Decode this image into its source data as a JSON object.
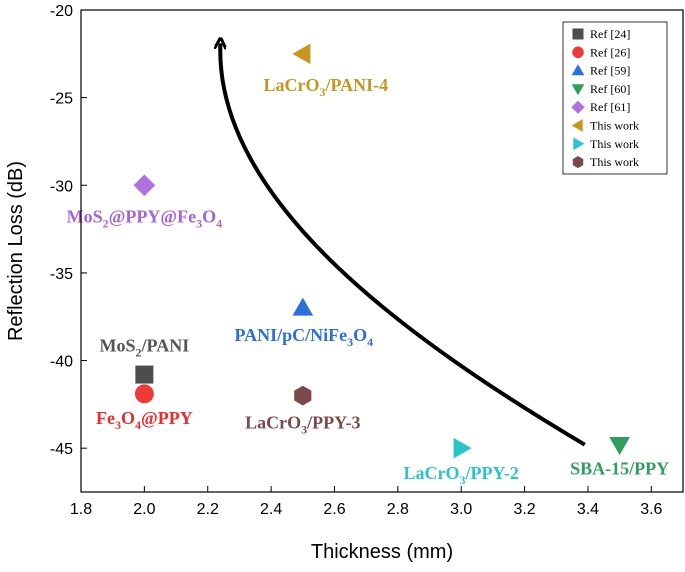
{
  "chart_data": {
    "type": "scatter",
    "xlabel": "Thickness (mm)",
    "ylabel": "Reflection Loss (dB)",
    "xlim": [
      1.8,
      3.7
    ],
    "ylim": [
      -47.5,
      -20
    ],
    "xticks": [
      1.8,
      2.0,
      2.2,
      2.4,
      2.6,
      2.8,
      3.0,
      3.2,
      3.4,
      3.6
    ],
    "xtick_labels": [
      "1.8",
      "2.0",
      "2.2",
      "2.4",
      "2.6",
      "2.8",
      "3.0",
      "3.2",
      "3.4",
      "3.6"
    ],
    "yticks": [
      -45,
      -40,
      -35,
      -30,
      -25,
      -20
    ],
    "ytick_labels": [
      "-45",
      "-40",
      "-35",
      "-30",
      "-25",
      "-20"
    ],
    "legend_position": "top-right",
    "series": [
      {
        "name": "Ref [24]",
        "marker": "square",
        "color": "#4d4d4d",
        "x": 2.0,
        "y": -40.8,
        "label": {
          "parts": [
            {
              "t": "MoS"
            },
            {
              "t": "2",
              "sub": true
            },
            {
              "t": "/PANI"
            }
          ],
          "color": "#555555"
        }
      },
      {
        "name": "Ref [26]",
        "marker": "circle",
        "color": "#f03a3a",
        "x": 2.0,
        "y": -41.9,
        "label": {
          "parts": [
            {
              "t": "Fe"
            },
            {
              "t": "3",
              "sub": true
            },
            {
              "t": "O"
            },
            {
              "t": "4",
              "sub": true
            },
            {
              "t": "@PPY"
            }
          ],
          "color": "#ef2b2b"
        }
      },
      {
        "name": "Ref [59]",
        "marker": "triangle-up",
        "color": "#2a6fdb",
        "x": 2.5,
        "y": -37.0,
        "label": {
          "parts": [
            {
              "t": "PANI/pC/NiFe"
            },
            {
              "t": "3",
              "sub": true
            },
            {
              "t": "O"
            },
            {
              "t": "4",
              "sub": true
            }
          ],
          "color": "#2a6fdb"
        }
      },
      {
        "name": "Ref [60]",
        "marker": "triangle-down",
        "color": "#2e9e5e",
        "x": 3.5,
        "y": -44.8,
        "label": {
          "parts": [
            {
              "t": "SBA-15/PPY"
            }
          ],
          "color": "#2e9e5e"
        }
      },
      {
        "name": "Ref [61]",
        "marker": "diamond",
        "color": "#b070e0",
        "x": 2.0,
        "y": -30.0,
        "label": {
          "parts": [
            {
              "t": "MoS"
            },
            {
              "t": "2",
              "sub": true
            },
            {
              "t": "@PPY@Fe"
            },
            {
              "t": "3",
              "sub": true
            },
            {
              "t": "O"
            },
            {
              "t": "4",
              "sub": true
            }
          ],
          "color": "#a862d8"
        }
      },
      {
        "name": "This work",
        "marker": "triangle-left",
        "color": "#c8961e",
        "x": 2.5,
        "y": -22.5,
        "label": {
          "parts": [
            {
              "t": "LaCrO"
            },
            {
              "t": "3",
              "sub": true
            },
            {
              "t": "/PANI-4"
            }
          ],
          "color": "#c8961e"
        }
      },
      {
        "name": "This work",
        "marker": "triangle-right",
        "color": "#2ac4cc",
        "x": 3.0,
        "y": -45.0,
        "label": {
          "parts": [
            {
              "t": "LaCrO"
            },
            {
              "t": "3",
              "sub": true
            },
            {
              "t": "/PPY-2"
            }
          ],
          "color": "#2ac4cc"
        }
      },
      {
        "name": "This work",
        "marker": "hexagon",
        "color": "#7a4a4a",
        "x": 2.5,
        "y": -42.0,
        "label": {
          "parts": [
            {
              "t": "LaCrO"
            },
            {
              "t": "3",
              "sub": true
            },
            {
              "t": "/PPY-3"
            }
          ],
          "color": "#7a4a4a"
        }
      }
    ],
    "annotation": "curved arrow from (3.4, -45) up to (2.25, -22.5)"
  }
}
